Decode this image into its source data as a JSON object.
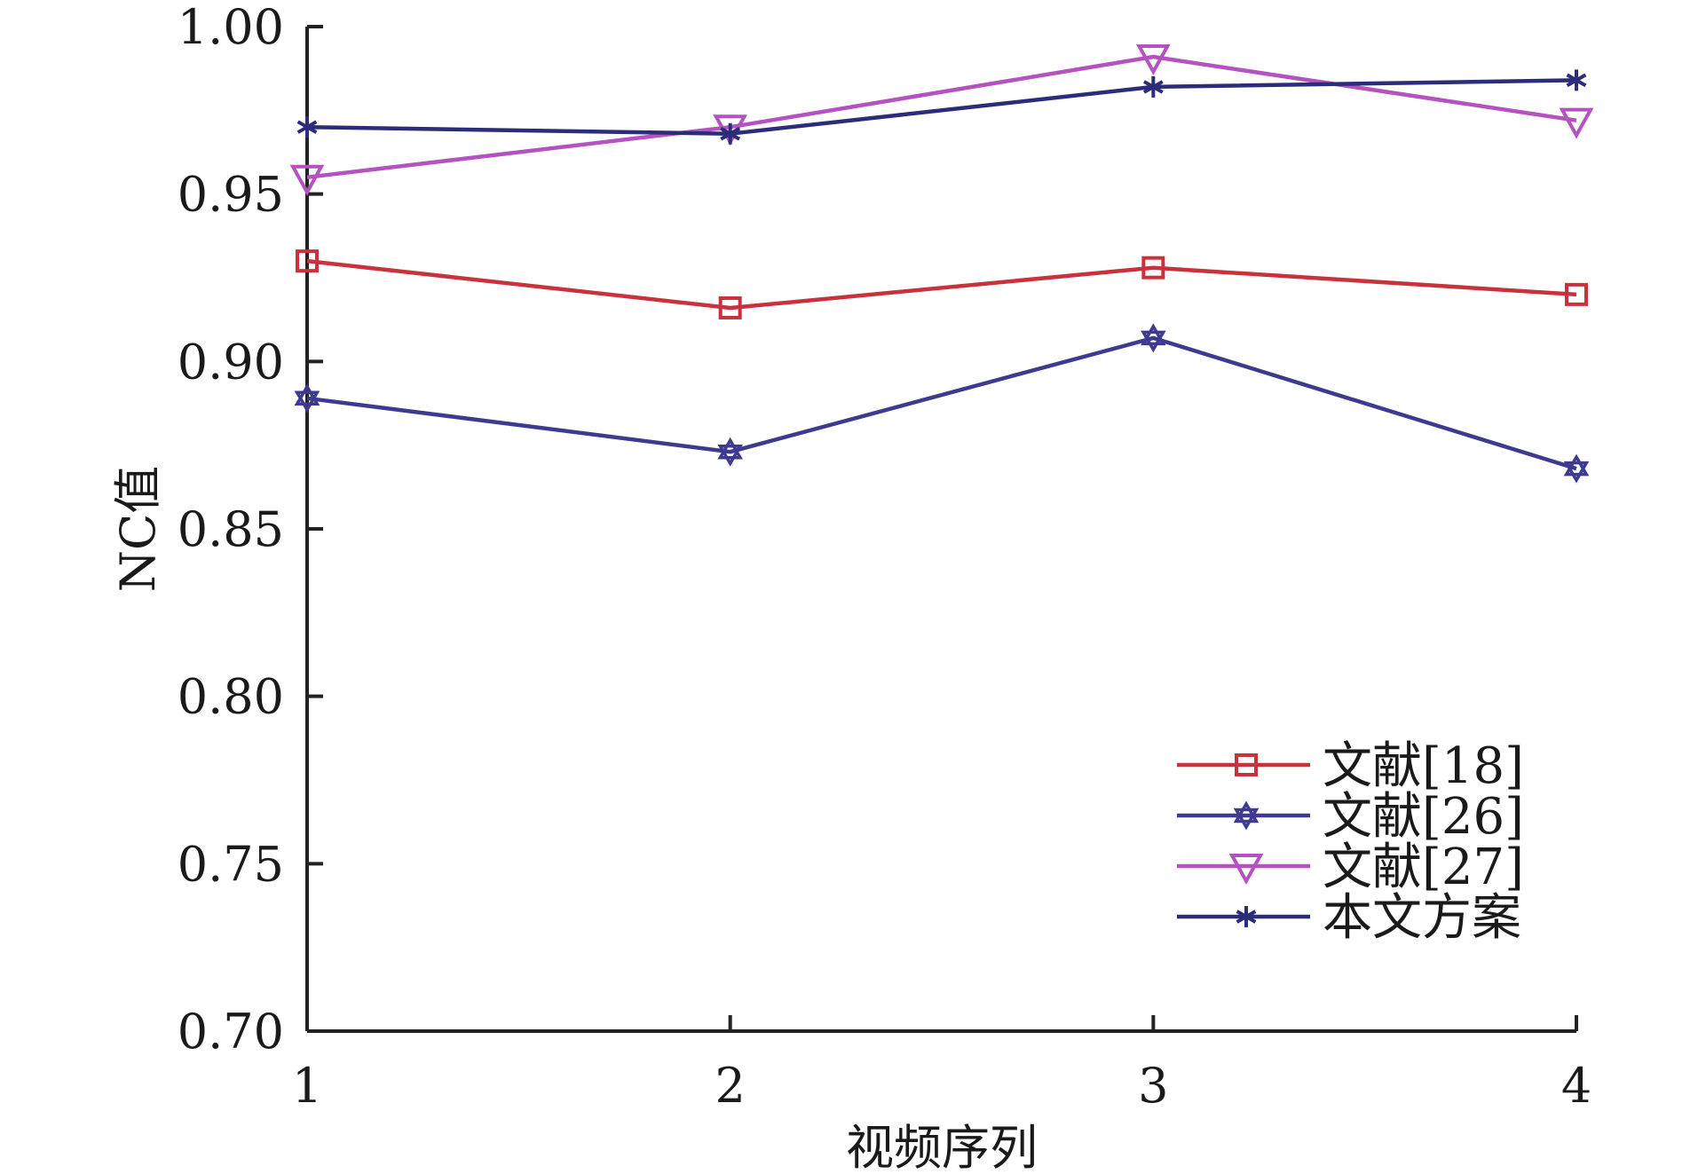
{
  "chart_data": {
    "type": "line",
    "title": "",
    "xlabel": "视频序列",
    "ylabel": "NC值",
    "categories": [
      "1",
      "2",
      "3",
      "4"
    ],
    "x": [
      1,
      2,
      3,
      4
    ],
    "xlim": [
      1,
      4
    ],
    "ylim": [
      0.7,
      1.0
    ],
    "yticks": [
      "0.70",
      "0.75",
      "0.80",
      "0.85",
      "0.90",
      "0.95",
      "1.00"
    ],
    "ytick_values": [
      0.7,
      0.75,
      0.8,
      0.85,
      0.9,
      0.95,
      1.0
    ],
    "grid": false,
    "legend_position": "bottom-right",
    "series": [
      {
        "name": "文献[18]",
        "values": [
          0.93,
          0.916,
          0.928,
          0.92
        ],
        "color": "#c8323c",
        "marker": "square"
      },
      {
        "name": "文献[26]",
        "values": [
          0.889,
          0.873,
          0.907,
          0.868
        ],
        "color": "#3d3a8f",
        "marker": "hexagram"
      },
      {
        "name": "文献[27]",
        "values": [
          0.955,
          0.97,
          0.991,
          0.972
        ],
        "color": "#b452c0",
        "marker": "triangle-down"
      },
      {
        "name": "本文方案",
        "values": [
          0.97,
          0.968,
          0.982,
          0.984
        ],
        "color": "#2b2c7a",
        "marker": "asterisk"
      }
    ]
  }
}
